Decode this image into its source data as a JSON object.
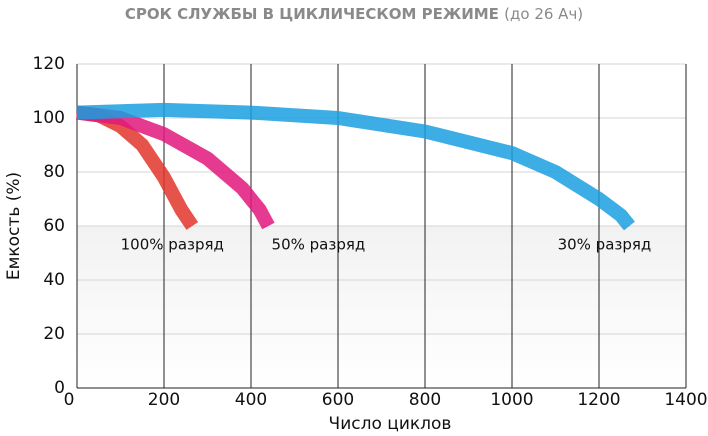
{
  "chart_data": {
    "type": "line",
    "title": "СРОК СЛУЖБЫ В ЦИКЛИЧЕСКОМ РЕЖИМЕ",
    "subtitle": "(до 26 Ач)",
    "x_label": "Число циклов",
    "y_label": "Емкость (%)",
    "xlim": [
      0,
      1400
    ],
    "xticks": [
      0,
      200,
      400,
      600,
      800,
      1000,
      1200,
      1400
    ],
    "ylim": [
      0,
      120
    ],
    "yticks": [
      0,
      20,
      40,
      60,
      80,
      100,
      120
    ],
    "grid": true,
    "series": [
      {
        "name": "100% разряд",
        "color": "#e2352c",
        "x": [
          0,
          50,
          100,
          150,
          200,
          240,
          265
        ],
        "values": [
          102,
          101,
          97,
          90,
          78,
          66,
          60
        ]
      },
      {
        "name": "50% разряд",
        "color": "#e0177c",
        "x": [
          0,
          100,
          200,
          300,
          380,
          420,
          440
        ],
        "values": [
          102,
          100,
          94,
          85,
          74,
          66,
          60
        ]
      },
      {
        "name": "30% разряд",
        "color": "#1b9fe0",
        "x": [
          0,
          200,
          400,
          600,
          800,
          1000,
          1100,
          1200,
          1250,
          1270
        ],
        "values": [
          102,
          103,
          102,
          100,
          95,
          87,
          80,
          70,
          64,
          60
        ]
      }
    ]
  }
}
